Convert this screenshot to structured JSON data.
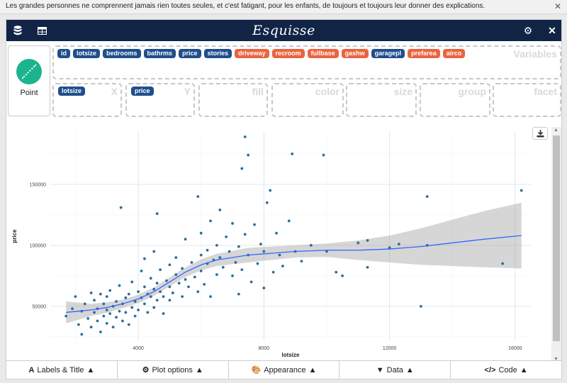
{
  "notice": {
    "text": "Les grandes personnes ne comprennent jamais rien toutes seules, et c'est fatigant, pour les enfants, de toujours et toujours leur donner des explications.",
    "close": "✕"
  },
  "header": {
    "title": "Esquisse"
  },
  "geom": {
    "label": "Point"
  },
  "variables": {
    "label": "Variables",
    "chips": [
      {
        "name": "id",
        "kind": "num"
      },
      {
        "name": "lotsize",
        "kind": "num"
      },
      {
        "name": "bedrooms",
        "kind": "num"
      },
      {
        "name": "bathrms",
        "kind": "num"
      },
      {
        "name": "price",
        "kind": "num"
      },
      {
        "name": "stories",
        "kind": "num"
      },
      {
        "name": "driveway",
        "kind": "cat"
      },
      {
        "name": "recroom",
        "kind": "cat"
      },
      {
        "name": "fullbase",
        "kind": "cat"
      },
      {
        "name": "gashw",
        "kind": "cat"
      },
      {
        "name": "garagepl",
        "kind": "num"
      },
      {
        "name": "prefarea",
        "kind": "cat"
      },
      {
        "name": "airco",
        "kind": "cat"
      }
    ]
  },
  "aesthetics": {
    "x": {
      "label": "X",
      "value": "lotsize"
    },
    "y": {
      "label": "Y",
      "value": "price"
    },
    "fill": {
      "label": "fill"
    },
    "color": {
      "label": "color"
    },
    "size": {
      "label": "size"
    },
    "group": {
      "label": "group"
    },
    "facet": {
      "label": "facet"
    }
  },
  "colors": {
    "header": "#112446",
    "numeric": "#1f4e8c",
    "categorical": "#ea6440",
    "points": "#2c6e9b",
    "smooth": "#3366ff"
  },
  "chart_data": {
    "type": "scatter",
    "xlabel": "lotsize",
    "ylabel": "price",
    "xlim": [
      1200,
      16500
    ],
    "ylim": [
      22000,
      193000
    ],
    "xticks": [
      4000,
      8000,
      12000,
      16000
    ],
    "yticks": [
      50000,
      100000,
      150000
    ],
    "grid": true,
    "points": [
      [
        1700,
        42000
      ],
      [
        1900,
        48000
      ],
      [
        2000,
        58000
      ],
      [
        2100,
        35000
      ],
      [
        2200,
        46000
      ],
      [
        2200,
        27000
      ],
      [
        2300,
        52000
      ],
      [
        2400,
        40000
      ],
      [
        2500,
        61000
      ],
      [
        2500,
        33000
      ],
      [
        2600,
        45000
      ],
      [
        2600,
        55000
      ],
      [
        2700,
        38000
      ],
      [
        2700,
        48000
      ],
      [
        2800,
        60000
      ],
      [
        2800,
        29000
      ],
      [
        2900,
        42000
      ],
      [
        2900,
        52000
      ],
      [
        3000,
        36000
      ],
      [
        3000,
        47000
      ],
      [
        3000,
        58000
      ],
      [
        3100,
        44000
      ],
      [
        3100,
        63000
      ],
      [
        3200,
        50000
      ],
      [
        3200,
        33000
      ],
      [
        3300,
        41000
      ],
      [
        3300,
        54000
      ],
      [
        3400,
        46000
      ],
      [
        3400,
        67000
      ],
      [
        3450,
        131000
      ],
      [
        3500,
        38000
      ],
      [
        3500,
        52000
      ],
      [
        3600,
        57000
      ],
      [
        3600,
        45000
      ],
      [
        3700,
        60000
      ],
      [
        3700,
        35000
      ],
      [
        3800,
        49000
      ],
      [
        3800,
        70000
      ],
      [
        3900,
        54000
      ],
      [
        3900,
        42000
      ],
      [
        4000,
        62000
      ],
      [
        4000,
        47000
      ],
      [
        4100,
        57000
      ],
      [
        4100,
        79000
      ],
      [
        4200,
        52000
      ],
      [
        4200,
        66000
      ],
      [
        4200,
        89000
      ],
      [
        4300,
        45000
      ],
      [
        4300,
        60000
      ],
      [
        4400,
        73000
      ],
      [
        4400,
        58000
      ],
      [
        4500,
        64000
      ],
      [
        4500,
        49000
      ],
      [
        4500,
        95000
      ],
      [
        4600,
        69000
      ],
      [
        4600,
        55000
      ],
      [
        4600,
        126000
      ],
      [
        4700,
        62000
      ],
      [
        4700,
        80000
      ],
      [
        4800,
        58000
      ],
      [
        4800,
        44000
      ],
      [
        4900,
        71000
      ],
      [
        5000,
        66000
      ],
      [
        5000,
        84000
      ],
      [
        5000,
        55000
      ],
      [
        5100,
        61000
      ],
      [
        5200,
        76000
      ],
      [
        5200,
        90000
      ],
      [
        5300,
        69000
      ],
      [
        5400,
        58000
      ],
      [
        5400,
        81000
      ],
      [
        5500,
        72000
      ],
      [
        5500,
        105000
      ],
      [
        5600,
        66000
      ],
      [
        5700,
        86000
      ],
      [
        5800,
        74000
      ],
      [
        5900,
        62000
      ],
      [
        5900,
        140000
      ],
      [
        6000,
        92000
      ],
      [
        6000,
        79000
      ],
      [
        6000,
        110000
      ],
      [
        6100,
        68000
      ],
      [
        6200,
        96000
      ],
      [
        6200,
        85000
      ],
      [
        6300,
        58000
      ],
      [
        6300,
        120000
      ],
      [
        6400,
        88000
      ],
      [
        6500,
        100000
      ],
      [
        6500,
        76000
      ],
      [
        6600,
        129000
      ],
      [
        6600,
        90000
      ],
      [
        6700,
        82000
      ],
      [
        6800,
        107000
      ],
      [
        6900,
        95000
      ],
      [
        7000,
        118000
      ],
      [
        7000,
        75000
      ],
      [
        7100,
        86000
      ],
      [
        7200,
        99000
      ],
      [
        7200,
        60000
      ],
      [
        7300,
        80000
      ],
      [
        7300,
        163000
      ],
      [
        7400,
        189000
      ],
      [
        7400,
        109000
      ],
      [
        7500,
        92000
      ],
      [
        7500,
        174000
      ],
      [
        7600,
        70000
      ],
      [
        7700,
        117000
      ],
      [
        7800,
        85000
      ],
      [
        7900,
        101000
      ],
      [
        8000,
        65000
      ],
      [
        8000,
        95000
      ],
      [
        8100,
        135000
      ],
      [
        8200,
        145000
      ],
      [
        8300,
        78000
      ],
      [
        8400,
        110000
      ],
      [
        8500,
        92000
      ],
      [
        8600,
        83000
      ],
      [
        8800,
        120000
      ],
      [
        8900,
        175000
      ],
      [
        9000,
        95000
      ],
      [
        9200,
        87000
      ],
      [
        9500,
        100000
      ],
      [
        9900,
        174000
      ],
      [
        10000,
        95000
      ],
      [
        10300,
        78000
      ],
      [
        10500,
        75000
      ],
      [
        11000,
        102000
      ],
      [
        11300,
        82000
      ],
      [
        11300,
        104000
      ],
      [
        12000,
        98000
      ],
      [
        12300,
        101000
      ],
      [
        13000,
        50000
      ],
      [
        13200,
        140000
      ],
      [
        13200,
        100000
      ],
      [
        15600,
        85000
      ],
      [
        16200,
        145000
      ]
    ],
    "smooth": [
      [
        1700,
        45000
      ],
      [
        2500,
        47000
      ],
      [
        3000,
        49000
      ],
      [
        3500,
        52000
      ],
      [
        4000,
        56000
      ],
      [
        4500,
        62000
      ],
      [
        5000,
        70000
      ],
      [
        5500,
        78000
      ],
      [
        6000,
        84000
      ],
      [
        6500,
        88000
      ],
      [
        7000,
        90000
      ],
      [
        7500,
        92000
      ],
      [
        8000,
        93000
      ],
      [
        9000,
        95000
      ],
      [
        10000,
        96000
      ],
      [
        11000,
        96000
      ],
      [
        12000,
        97000
      ],
      [
        13000,
        99000
      ],
      [
        14000,
        102000
      ],
      [
        15000,
        105000
      ],
      [
        16200,
        108000
      ]
    ],
    "band_half_width": [
      [
        1700,
        9000
      ],
      [
        2500,
        5000
      ],
      [
        3500,
        3500
      ],
      [
        4500,
        3500
      ],
      [
        5500,
        4000
      ],
      [
        6500,
        5000
      ],
      [
        7500,
        6000
      ],
      [
        9000,
        5000
      ],
      [
        10000,
        5500
      ],
      [
        11000,
        8000
      ],
      [
        12000,
        11000
      ],
      [
        13000,
        15000
      ],
      [
        14000,
        19000
      ],
      [
        15000,
        23000
      ],
      [
        16200,
        27000
      ]
    ]
  },
  "bottombar": {
    "labels": {
      "icon": "A",
      "label": "Labels & Title"
    },
    "plot_options": {
      "icon": "⚙",
      "label": "Plot options"
    },
    "appearance": {
      "icon": "🎨",
      "label": "Appearance"
    },
    "data": {
      "icon": "▼",
      "label": "Data"
    },
    "code": {
      "icon": "</>",
      "label": "Code"
    }
  }
}
